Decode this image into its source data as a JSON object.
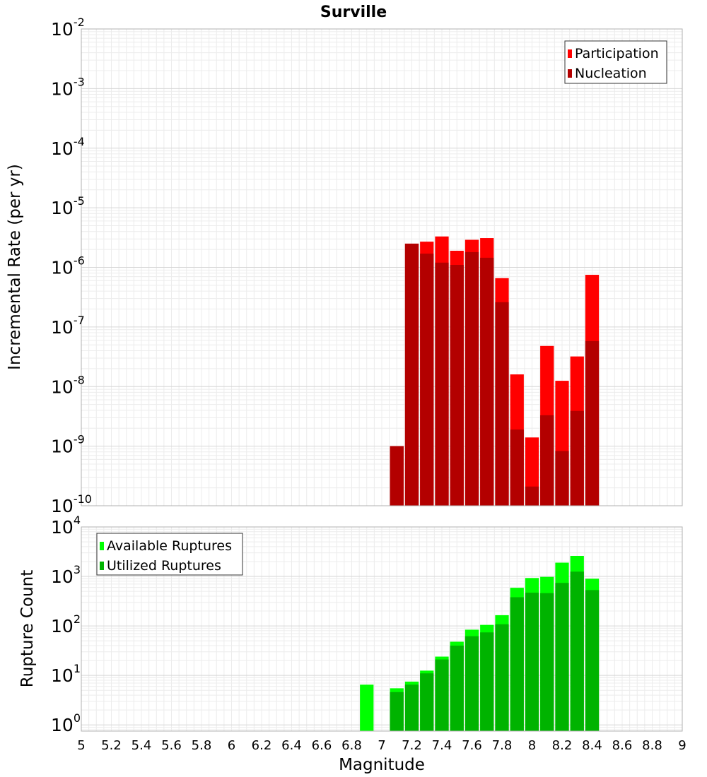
{
  "chart_data": [
    {
      "type": "bar",
      "title": "Surville",
      "ylabel": "Incremental Rate (per yr)",
      "yscale": "log",
      "ylim": [
        1e-10,
        0.01
      ],
      "yticks": [
        {
          "base": "10",
          "exp": "-10",
          "value": 1e-10
        },
        {
          "base": "10",
          "exp": "-9",
          "value": 1e-09
        },
        {
          "base": "10",
          "exp": "-8",
          "value": 1e-08
        },
        {
          "base": "10",
          "exp": "-7",
          "value": 1e-07
        },
        {
          "base": "10",
          "exp": "-6",
          "value": 1e-06
        },
        {
          "base": "10",
          "exp": "-5",
          "value": 1e-05
        },
        {
          "base": "10",
          "exp": "-4",
          "value": 0.0001
        },
        {
          "base": "10",
          "exp": "-3",
          "value": 0.001
        },
        {
          "base": "10",
          "exp": "-2",
          "value": 0.01
        }
      ],
      "grid": true,
      "legend_position": "top-right",
      "x": [
        7.1,
        7.2,
        7.3,
        7.4,
        7.5,
        7.6,
        7.7,
        7.8,
        7.9,
        8.0,
        8.1,
        8.2,
        8.3,
        8.4
      ],
      "series": [
        {
          "name": "Participation",
          "color": "#ff0000",
          "values": [
            1e-09,
            2.5e-06,
            2.7e-06,
            3.3e-06,
            1.9e-06,
            2.9e-06,
            3.1e-06,
            6.6e-07,
            1.6e-08,
            1.4e-09,
            4.8e-08,
            1.25e-08,
            3.2e-08,
            7.5e-07
          ]
        },
        {
          "name": "Nucleation",
          "color": "#b30000",
          "values": [
            1e-09,
            2.5e-06,
            1.7e-06,
            1.2e-06,
            1.1e-06,
            1.8e-06,
            1.45e-06,
            2.6e-07,
            1.9e-09,
            2.1e-10,
            3.3e-09,
            8.3e-10,
            3.9e-09,
            5.8e-08
          ]
        }
      ]
    },
    {
      "type": "bar",
      "xlabel": "Magnitude",
      "ylabel": "Rupture Count",
      "yscale": "log",
      "ylim": [
        0.75,
        10000
      ],
      "yticks": [
        {
          "base": "10",
          "exp": "0",
          "value": 1
        },
        {
          "base": "10",
          "exp": "1",
          "value": 10
        },
        {
          "base": "10",
          "exp": "2",
          "value": 100
        },
        {
          "base": "10",
          "exp": "3",
          "value": 1000
        },
        {
          "base": "10",
          "exp": "4",
          "value": 10000
        }
      ],
      "xlim": [
        5,
        9
      ],
      "xticks": [
        "5",
        "5.2",
        "5.4",
        "5.6",
        "5.8",
        "6",
        "6.2",
        "6.4",
        "6.6",
        "6.8",
        "7",
        "7.2",
        "7.4",
        "7.6",
        "7.8",
        "8",
        "8.2",
        "8.4",
        "8.6",
        "8.8",
        "9"
      ],
      "grid": true,
      "legend_position": "top-left",
      "x": [
        6.9,
        7.1,
        7.2,
        7.3,
        7.4,
        7.5,
        7.6,
        7.7,
        7.8,
        7.9,
        8.0,
        8.1,
        8.2,
        8.3,
        8.4
      ],
      "series": [
        {
          "name": "Available Ruptures",
          "color": "#00ff00",
          "values": [
            6.5,
            5.5,
            7.5,
            12.5,
            24,
            48,
            84,
            105,
            165,
            590,
            930,
            980,
            1900,
            2600,
            900
          ]
        },
        {
          "name": "Utilized Ruptures",
          "color": "#00b300",
          "values": [
            null,
            4.6,
            6.5,
            11,
            21,
            40,
            62,
            74,
            108,
            380,
            470,
            460,
            740,
            1250,
            530
          ]
        }
      ]
    }
  ]
}
